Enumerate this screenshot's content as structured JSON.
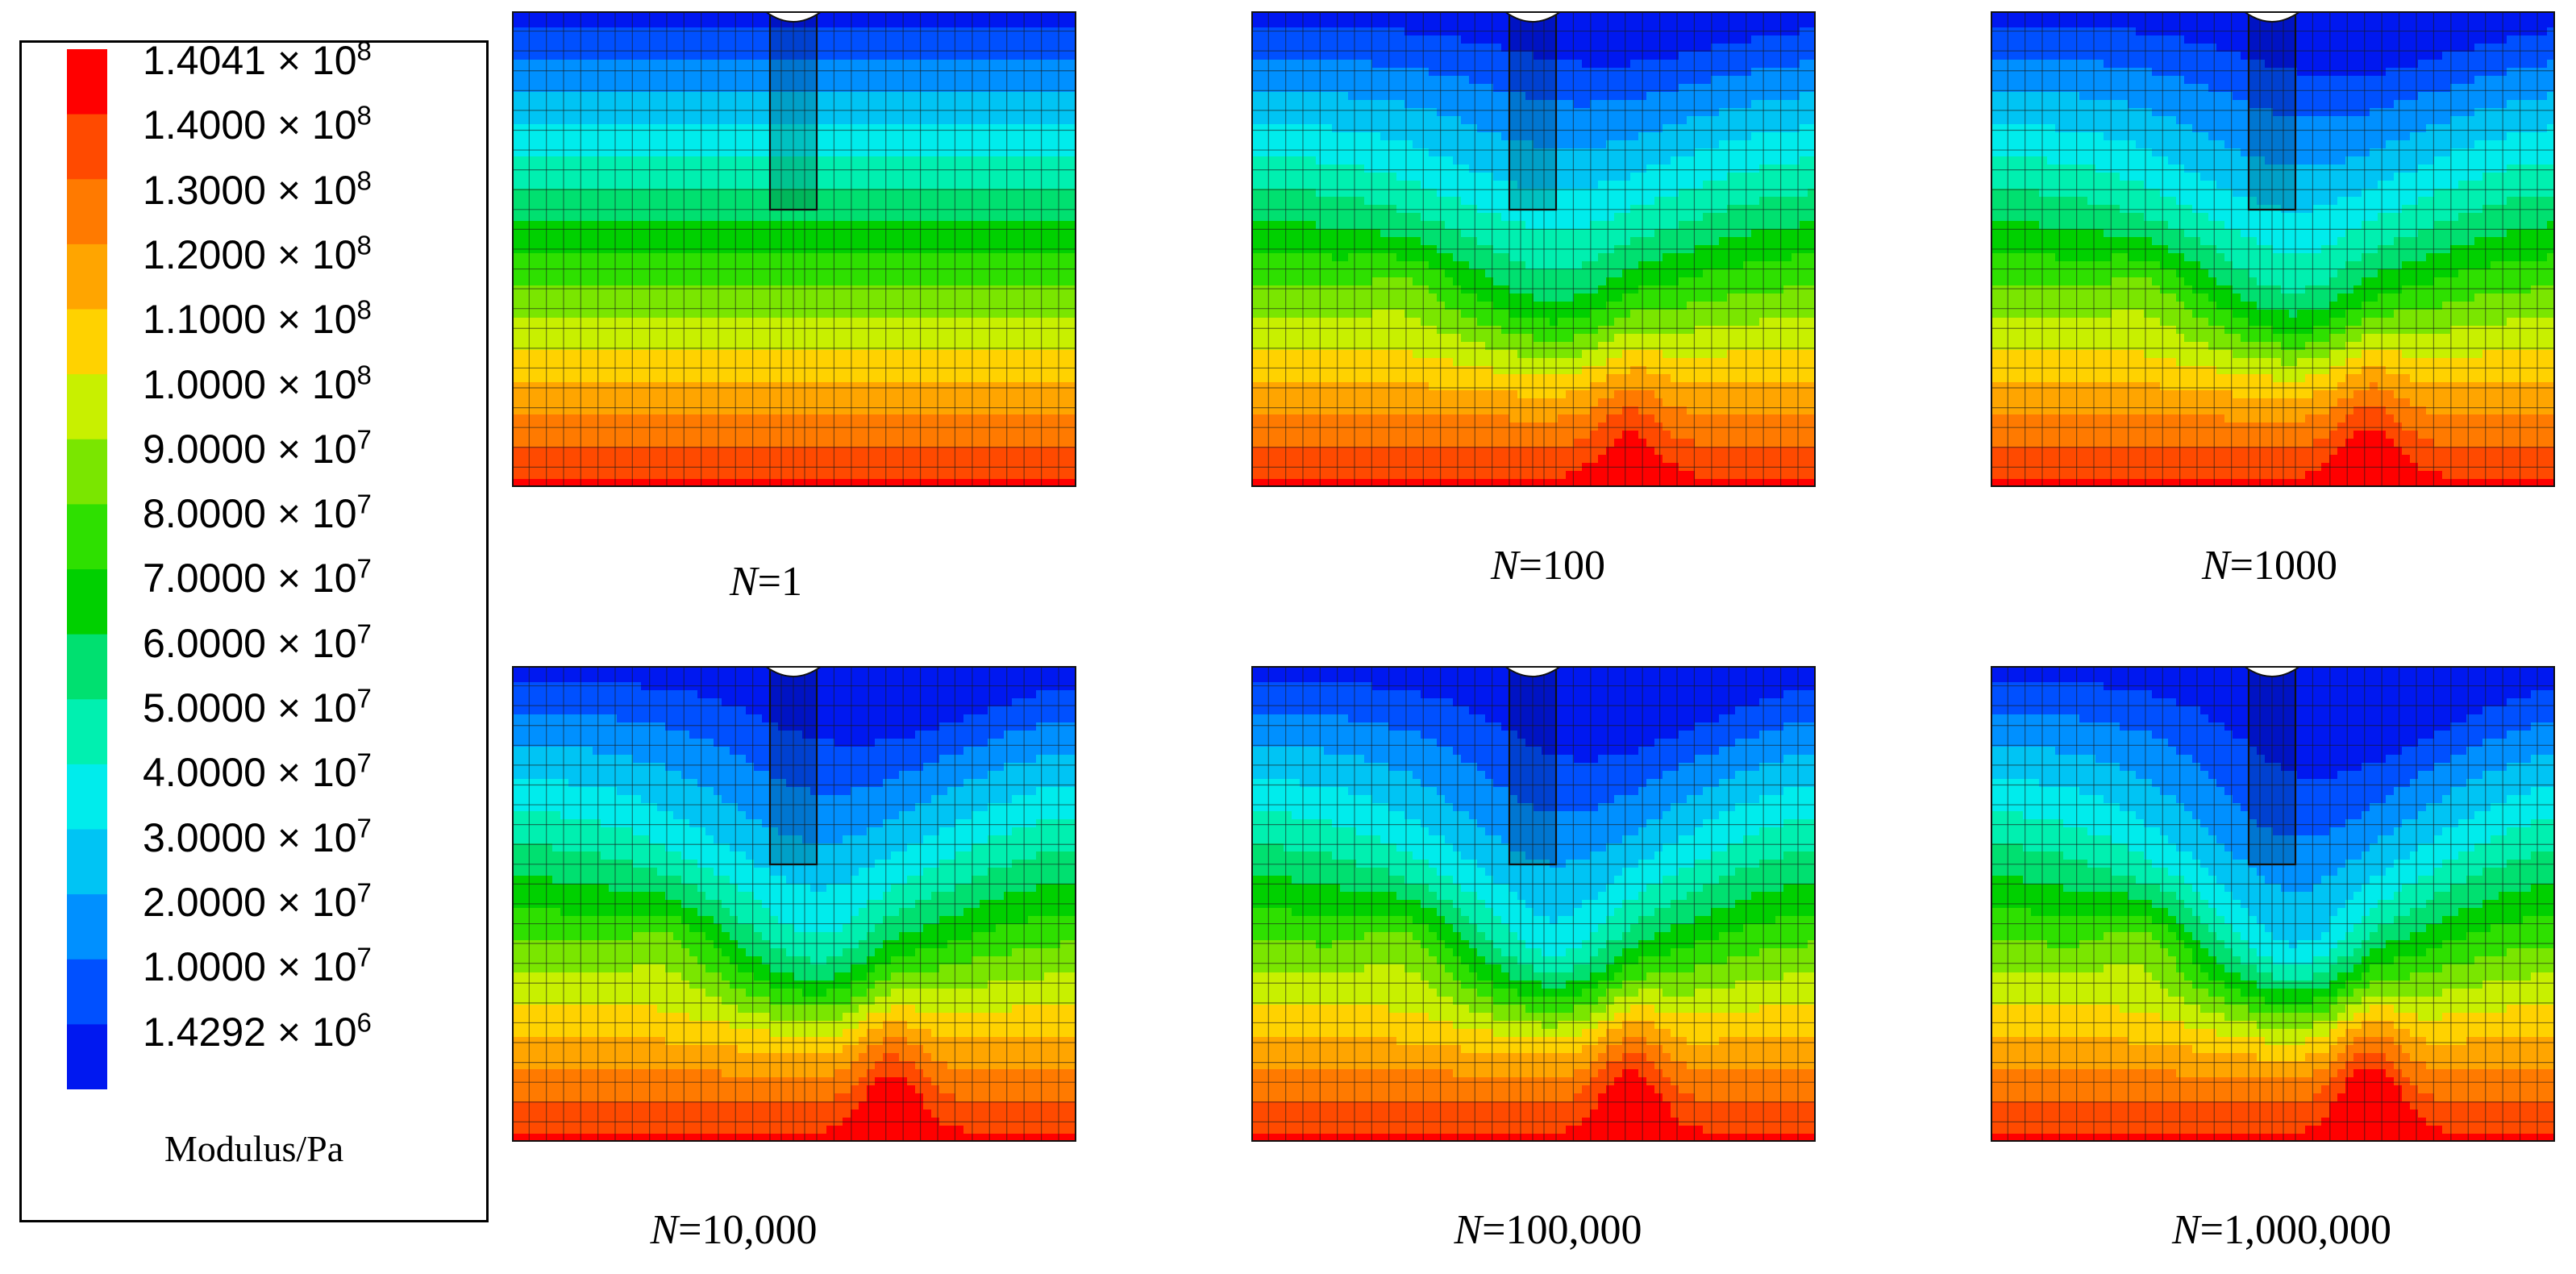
{
  "legend": {
    "title": "Modulus/Pa",
    "entries": [
      {
        "mantissa": "1.4041",
        "exponent": "8",
        "color": "#ff0000"
      },
      {
        "mantissa": "1.4000",
        "exponent": "8",
        "color": "#ff4a00"
      },
      {
        "mantissa": "1.3000",
        "exponent": "8",
        "color": "#ff7a00"
      },
      {
        "mantissa": "1.2000",
        "exponent": "8",
        "color": "#ffa500"
      },
      {
        "mantissa": "1.1000",
        "exponent": "8",
        "color": "#ffd200"
      },
      {
        "mantissa": "1.0000",
        "exponent": "8",
        "color": "#c8f000"
      },
      {
        "mantissa": "9.0000",
        "exponent": "7",
        "color": "#7ae600"
      },
      {
        "mantissa": "8.0000",
        "exponent": "7",
        "color": "#2ee000"
      },
      {
        "mantissa": "7.0000",
        "exponent": "7",
        "color": "#00d000"
      },
      {
        "mantissa": "6.0000",
        "exponent": "7",
        "color": "#00e070"
      },
      {
        "mantissa": "5.0000",
        "exponent": "7",
        "color": "#00f0b0"
      },
      {
        "mantissa": "4.0000",
        "exponent": "7",
        "color": "#00ecec"
      },
      {
        "mantissa": "3.0000",
        "exponent": "7",
        "color": "#00c4f4"
      },
      {
        "mantissa": "2.0000",
        "exponent": "7",
        "color": "#0090ff"
      },
      {
        "mantissa": "1.0000",
        "exponent": "7",
        "color": "#0050ff"
      },
      {
        "mantissa": "1.4292",
        "exponent": "6",
        "color": "#0018f0"
      }
    ]
  },
  "panels": [
    {
      "n_var": "N",
      "n_value": "=1",
      "stage": 0
    },
    {
      "n_var": "N",
      "n_value": "=100",
      "stage": 1
    },
    {
      "n_var": "N",
      "n_value": "=1000",
      "stage": 2
    },
    {
      "n_var": "N",
      "n_value": "=10,000",
      "stage": 3
    },
    {
      "n_var": "N",
      "n_value": "=100,000",
      "stage": 4
    },
    {
      "n_var": "N",
      "n_value": "=1,000,000",
      "stage": 5
    }
  ]
}
